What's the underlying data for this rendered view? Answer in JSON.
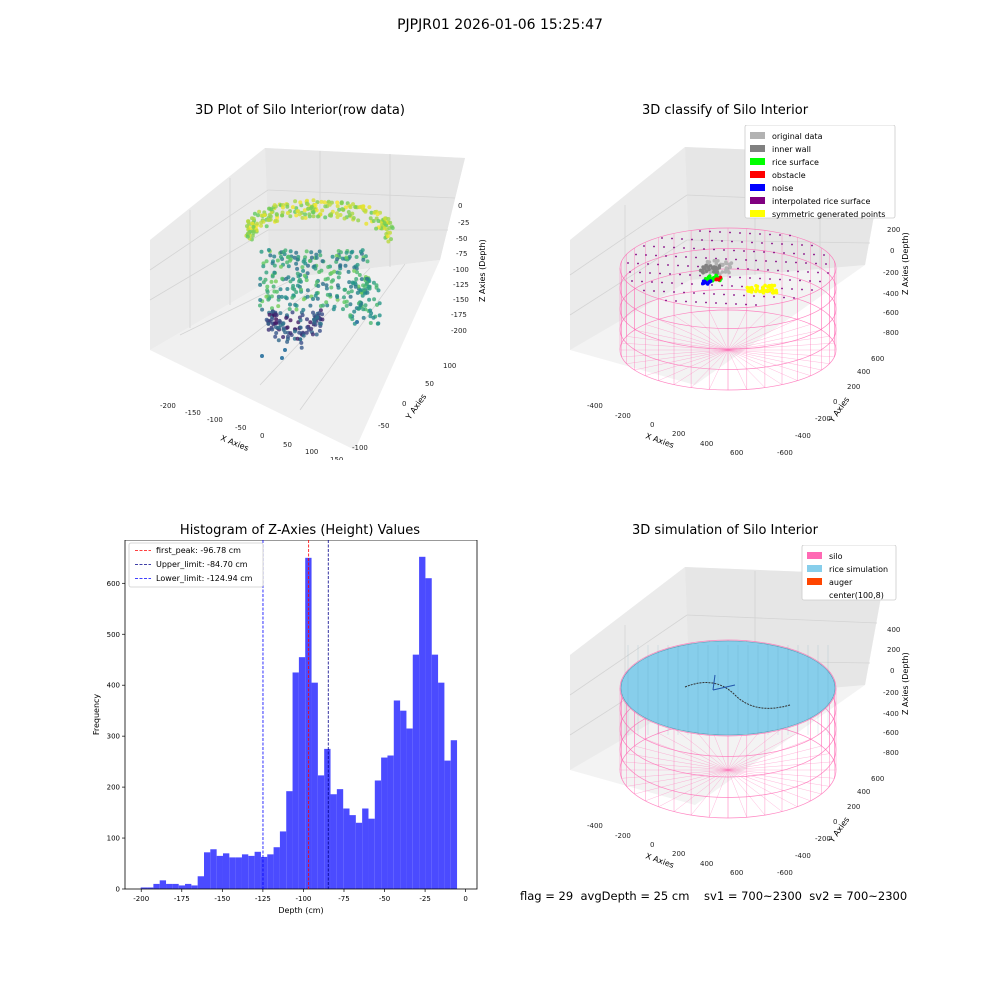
{
  "suptitle": "PJPJR01 2026-01-06 15:25:47",
  "status_line": "flag = 29  avgDepth = 25 cm    sv1 = 700~2300  sv2 = 700~2300",
  "colors": {
    "silo": "#ff69b4",
    "rice_simulation": "#87ceeb",
    "auger": "#ff4500",
    "hist": "#4b4bff",
    "original_data": "#b2b2b2",
    "inner_wall": "#808080",
    "rice_surface": "#00ff00",
    "obstacle": "#ff0000",
    "noise": "#0000ff",
    "interpolated_rice_surface": "#800080",
    "symmetric_generated_points": "#ffff00"
  },
  "chart_data": [
    {
      "type": "scatter",
      "title": "3D Plot of Silo Interior(row data)",
      "xlabel": "X Axies",
      "ylabel": "Y Axies",
      "zlabel": "Z Axies (Depth)",
      "x_ticks": [
        "-200",
        "-150",
        "-100",
        "-50",
        "0",
        "50",
        "100",
        "150"
      ],
      "y_ticks": [
        "-100",
        "-50",
        "0",
        "50",
        "100"
      ],
      "z_ticks": [
        "0",
        "-25",
        "-50",
        "-75",
        "-100",
        "-125",
        "-150",
        "-175",
        "-200"
      ],
      "colormap": "viridis"
    },
    {
      "type": "scatter",
      "title": "3D classify of Silo Interior",
      "xlabel": "X Axies",
      "ylabel": "Y Axies",
      "zlabel": "Z Axies (Depth)",
      "x_ticks": [
        "-400",
        "-200",
        "0",
        "200",
        "400",
        "600"
      ],
      "y_ticks": [
        "-600",
        "-400",
        "-200",
        "0",
        "200",
        "400",
        "600"
      ],
      "z_ticks": [
        "200",
        "0",
        "-200",
        "-400",
        "-600",
        "-800"
      ],
      "z_ticks_top": "0",
      "legend": [
        {
          "label": "original data",
          "color": "#b2b2b2"
        },
        {
          "label": "inner wall",
          "color": "#808080"
        },
        {
          "label": "rice surface",
          "color": "#00ff00"
        },
        {
          "label": "obstacle",
          "color": "#ff0000"
        },
        {
          "label": "noise",
          "color": "#0000ff"
        },
        {
          "label": "interpolated rice surface",
          "color": "#800080"
        },
        {
          "label": "symmetric generated points",
          "color": "#ffff00"
        }
      ],
      "legend_loc": "upper right"
    },
    {
      "type": "bar",
      "title": "Histogram of Z-Axies (Height) Values",
      "xlabel": "Depth (cm)",
      "ylabel": "Frequency",
      "xlim": [
        -210,
        7
      ],
      "ylim": [
        0,
        685
      ],
      "x_ticks": [
        -200,
        -175,
        -150,
        -125,
        -100,
        -75,
        -50,
        -25,
        0
      ],
      "y_ticks": [
        0,
        100,
        200,
        300,
        400,
        500,
        600
      ],
      "bin_width": 3.9,
      "bin_start": -200.3,
      "values": [
        3,
        3,
        10,
        17,
        10,
        10,
        7,
        10,
        7,
        25,
        72,
        78,
        65,
        70,
        62,
        62,
        68,
        65,
        73,
        63,
        68,
        82,
        113,
        192,
        425,
        455,
        650,
        405,
        223,
        275,
        186,
        196,
        158,
        145,
        130,
        158,
        138,
        213,
        258,
        262,
        370,
        350,
        315,
        460,
        652,
        610,
        460,
        405,
        252,
        292
      ],
      "vlines": [
        {
          "label": "first_peak: -96.78 cm",
          "x": -96.78,
          "color": "#ff0000"
        },
        {
          "label": "Upper_limit: -84.70 cm",
          "x": -84.7,
          "color": "#00008b"
        },
        {
          "label": "Lower_limit: -124.94 cm",
          "x": -124.94,
          "color": "#0000ff"
        }
      ],
      "legend_loc": "upper left"
    },
    {
      "type": "scatter",
      "title": "3D simulation of Silo Interior",
      "xlabel": "X Axies",
      "ylabel": "Y Axies",
      "zlabel": "Z Axies (Depth)",
      "x_ticks": [
        "-400",
        "-200",
        "0",
        "200",
        "400",
        "600"
      ],
      "y_ticks": [
        "-600",
        "-400",
        "-200",
        "0",
        "200",
        "400",
        "600"
      ],
      "z_ticks": [
        "400",
        "200",
        "0",
        "-200",
        "-400",
        "-600",
        "-800"
      ],
      "legend": [
        {
          "label": "silo",
          "color": "#ff69b4"
        },
        {
          "label": "rice simulation",
          "color": "#87ceeb"
        },
        {
          "label": "auger",
          "color": "#ff4500"
        },
        {
          "label": "center(100,8)",
          "color": "#ffffff"
        }
      ],
      "legend_loc": "upper right"
    }
  ]
}
